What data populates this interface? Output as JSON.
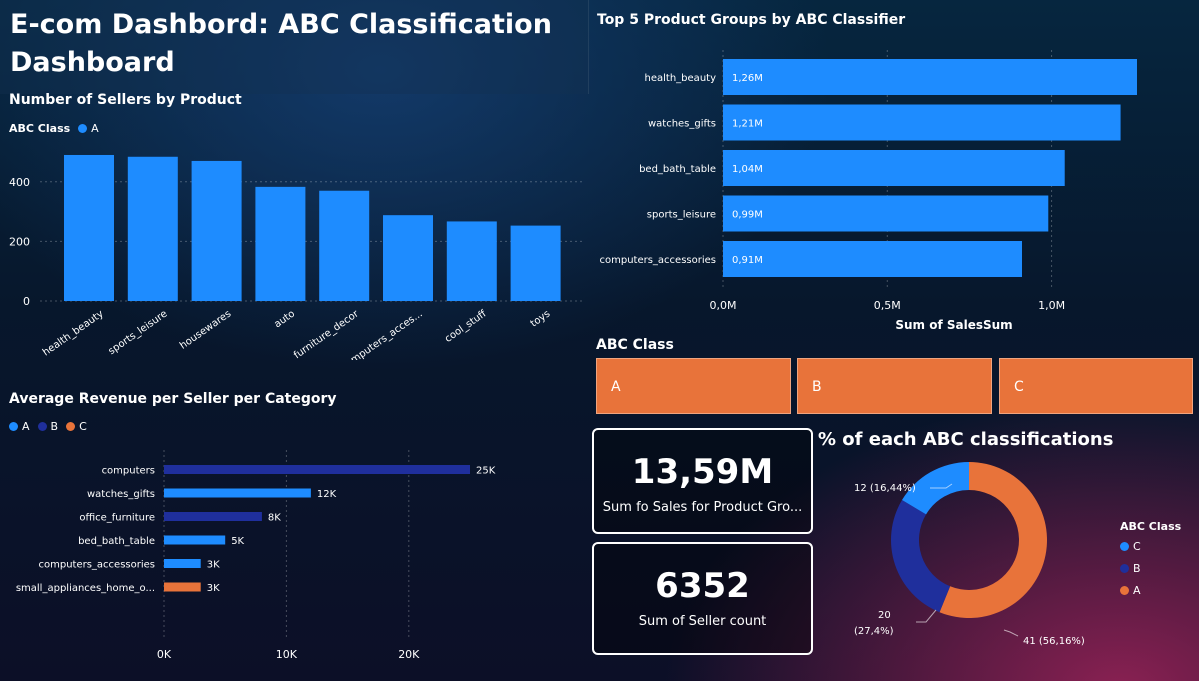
{
  "dashboard": {
    "title": "E-com Dashbord: ABC Classification Dashboard"
  },
  "sellers_chart": {
    "title": "Number of Sellers by Product",
    "legend_label": "ABC Class",
    "legend_item": "A"
  },
  "top5_chart": {
    "title": "Top 5 Product Groups by ABC Classifier",
    "xlabel": "Sum of SalesSum"
  },
  "revenue_chart": {
    "title": "Average Revenue per Seller per Category",
    "legend_items": [
      "A",
      "B",
      "C"
    ]
  },
  "slicer": {
    "title": "ABC Class",
    "options": [
      "A",
      "B",
      "C"
    ]
  },
  "cards": {
    "sales_value": "13,59M",
    "sales_label": "Sum fo Sales for Product Gro...",
    "seller_value": "6352",
    "seller_label": "Sum of Seller count"
  },
  "donut": {
    "title": "% of each ABC classifications",
    "legend_title": "ABC Class"
  },
  "colors": {
    "a": "#1e8cff",
    "b": "#1f2f9c",
    "c": "#e8733a"
  },
  "chart_data": [
    {
      "id": "sellers",
      "type": "bar",
      "categories": [
        "health_beauty",
        "sports_leisure",
        "housewares",
        "auto",
        "furniture_decor",
        "computers_acces...",
        "cool_stuff",
        "toys"
      ],
      "series": [
        {
          "name": "A",
          "values": [
            490,
            484,
            470,
            383,
            370,
            288,
            267,
            253
          ]
        }
      ],
      "ylim": [
        0,
        500
      ],
      "yticks": [
        "0",
        "200",
        "400"
      ],
      "ytick_values": [
        0,
        200,
        400
      ]
    },
    {
      "id": "top5",
      "type": "bar",
      "orientation": "horizontal",
      "categories": [
        "health_beauty",
        "watches_gifts",
        "bed_bath_table",
        "sports_leisure",
        "computers_accessories"
      ],
      "values": [
        1.26,
        1.21,
        1.04,
        0.99,
        0.91
      ],
      "labels": [
        "1,26M",
        "1,21M",
        "1,04M",
        "0,99M",
        "0,91M"
      ],
      "xlim": [
        0,
        1.26
      ],
      "xticks": [
        "0,0M",
        "0,5M",
        "1,0M"
      ],
      "xtick_values": [
        0,
        0.5,
        1.0
      ],
      "xlabel": "Sum of SalesSum"
    },
    {
      "id": "revenue",
      "type": "bar",
      "orientation": "horizontal",
      "categories": [
        "computers",
        "watches_gifts",
        "office_furniture",
        "bed_bath_table",
        "computers_accessories",
        "small_appliances_home_o..."
      ],
      "values": [
        25,
        12,
        8,
        5,
        3,
        3
      ],
      "classes": [
        "B",
        "A",
        "B",
        "A",
        "A",
        "C"
      ],
      "labels": [
        "25K",
        "12K",
        "8K",
        "5K",
        "3K",
        "3K"
      ],
      "xlim": [
        0,
        25
      ],
      "xticks": [
        "0K",
        "10K",
        "20K"
      ],
      "xtick_values": [
        0,
        10,
        20
      ]
    },
    {
      "id": "donut",
      "type": "pie",
      "categories": [
        "C",
        "B",
        "A"
      ],
      "values": [
        41,
        20,
        12
      ],
      "percent_labels": [
        "41 (56,16%)",
        "20 (27,4%)",
        "12 (16,44%)"
      ]
    }
  ]
}
